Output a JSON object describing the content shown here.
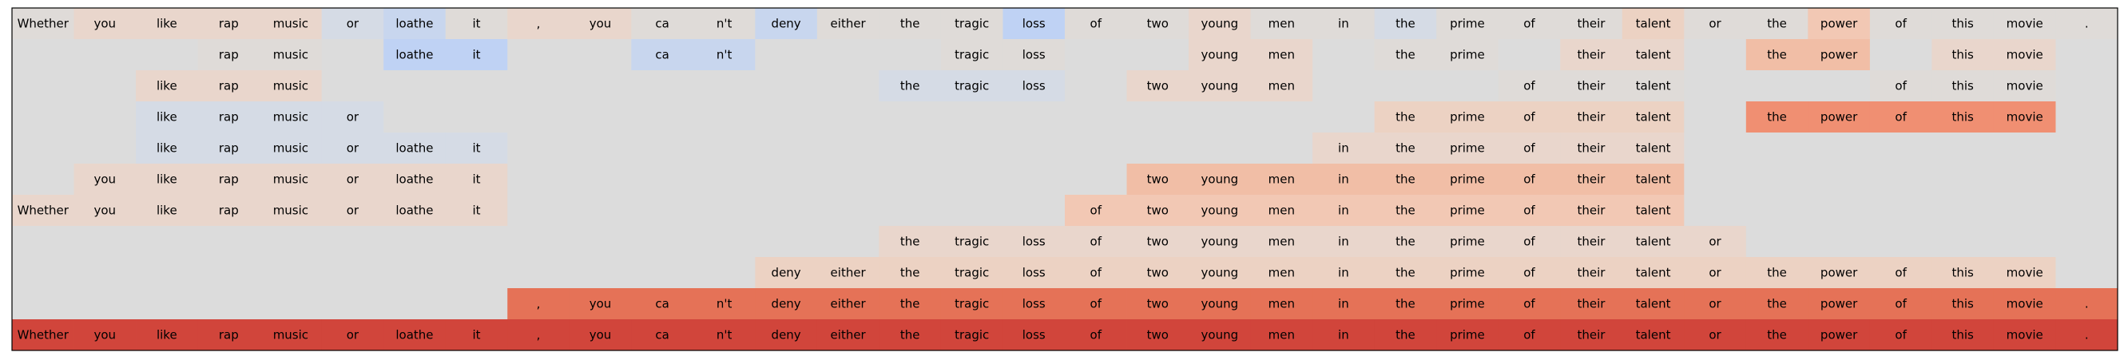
{
  "chart_data": {
    "type": "heatmap",
    "title": "",
    "xlabel": "",
    "ylabel": "",
    "tokens": [
      "Whether",
      "you",
      "like",
      "rap",
      "music",
      "or",
      "loathe",
      "it",
      ",",
      "you",
      "ca",
      "n't",
      "deny",
      "either",
      "the",
      "tragic",
      "loss",
      "of",
      "two",
      "young",
      "men",
      "in",
      "the",
      "prime",
      "of",
      "their",
      "talent",
      "or",
      "the",
      "power",
      "of",
      "this",
      "movie",
      "."
    ],
    "colors": {
      "background": "#dcdcdc",
      "frame": "#000000",
      "neg_1": "#dfdbd8",
      "neg_2": "#d5dbe5",
      "neg_3": "#c8d6ee",
      "neg_4": "#bfd2f4",
      "pos_1": "#e9d6cc",
      "pos_2": "#ecd2c3",
      "pos_3": "#f2c8b4",
      "pos_4": "#f1bea6",
      "pos_5": "#f08f72",
      "pos_6": "#e57257",
      "pos_7": "#d1453b"
    },
    "rows": [
      {
        "mask": [
          1,
          1,
          1,
          1,
          1,
          1,
          1,
          1,
          1,
          1,
          1,
          1,
          1,
          1,
          1,
          1,
          1,
          1,
          1,
          1,
          1,
          1,
          1,
          1,
          1,
          1,
          1,
          1,
          1,
          1,
          1,
          1,
          1,
          1
        ],
        "shade": [
          "neg_1",
          "pos_1",
          "pos_1",
          "pos_1",
          "pos_1",
          "neg_2",
          "neg_3",
          "neg_1",
          "pos_1",
          "pos_1",
          "neg_1",
          "neg_1",
          "neg_3",
          "neg_1",
          "neg_1",
          "neg_1",
          "neg_4",
          "neg_1",
          "neg_1",
          "pos_1",
          "neg_1",
          "neg_1",
          "neg_2",
          "neg_1",
          "neg_1",
          "neg_1",
          "pos_2",
          "neg_1",
          "neg_1",
          "pos_3",
          "neg_1",
          "neg_1",
          "neg_1",
          "neg_1"
        ]
      },
      {
        "mask": [
          0,
          0,
          0,
          1,
          1,
          0,
          1,
          1,
          0,
          0,
          1,
          1,
          0,
          0,
          0,
          1,
          1,
          0,
          0,
          1,
          1,
          0,
          1,
          1,
          0,
          1,
          1,
          0,
          1,
          1,
          0,
          1,
          1,
          0
        ],
        "shade": [
          "bg",
          "bg",
          "bg",
          "neg_1",
          "neg_1",
          "bg",
          "neg_4",
          "neg_4",
          "bg",
          "bg",
          "neg_3",
          "neg_3",
          "bg",
          "bg",
          "bg",
          "neg_1",
          "neg_1",
          "bg",
          "bg",
          "pos_1",
          "pos_1",
          "bg",
          "neg_1",
          "neg_1",
          "bg",
          "pos_1",
          "pos_1",
          "bg",
          "pos_4",
          "pos_4",
          "bg",
          "pos_1",
          "pos_1",
          "bg"
        ]
      },
      {
        "mask": [
          0,
          0,
          1,
          1,
          1,
          0,
          0,
          0,
          0,
          0,
          0,
          0,
          0,
          0,
          1,
          1,
          1,
          0,
          1,
          1,
          1,
          0,
          0,
          0,
          1,
          1,
          1,
          0,
          0,
          0,
          1,
          1,
          1,
          0
        ],
        "shade": [
          "bg",
          "bg",
          "pos_1",
          "pos_1",
          "pos_1",
          "bg",
          "bg",
          "bg",
          "bg",
          "bg",
          "bg",
          "bg",
          "bg",
          "bg",
          "neg_2",
          "neg_2",
          "neg_2",
          "bg",
          "pos_1",
          "pos_1",
          "pos_1",
          "bg",
          "bg",
          "bg",
          "neg_1",
          "neg_1",
          "neg_1",
          "bg",
          "bg",
          "bg",
          "neg_1",
          "neg_1",
          "neg_1",
          "bg"
        ]
      },
      {
        "mask": [
          0,
          0,
          1,
          1,
          1,
          1,
          0,
          0,
          0,
          0,
          0,
          0,
          0,
          0,
          0,
          0,
          0,
          0,
          0,
          0,
          0,
          0,
          1,
          1,
          1,
          1,
          1,
          0,
          1,
          1,
          1,
          1,
          1,
          0
        ],
        "shade": [
          "bg",
          "bg",
          "neg_2",
          "neg_2",
          "neg_2",
          "neg_2",
          "bg",
          "bg",
          "bg",
          "bg",
          "bg",
          "bg",
          "bg",
          "bg",
          "bg",
          "bg",
          "bg",
          "bg",
          "bg",
          "bg",
          "bg",
          "bg",
          "pos_2",
          "pos_2",
          "pos_2",
          "pos_2",
          "pos_2",
          "bg",
          "pos_5",
          "pos_5",
          "pos_5",
          "pos_5",
          "pos_5",
          "bg"
        ]
      },
      {
        "mask": [
          0,
          0,
          1,
          1,
          1,
          1,
          1,
          1,
          0,
          0,
          0,
          0,
          0,
          0,
          0,
          0,
          0,
          0,
          0,
          0,
          0,
          1,
          1,
          1,
          1,
          1,
          1,
          0,
          0,
          0,
          0,
          0,
          0,
          0
        ],
        "shade": [
          "bg",
          "bg",
          "neg_2",
          "neg_2",
          "neg_2",
          "neg_2",
          "neg_2",
          "neg_2",
          "bg",
          "bg",
          "bg",
          "bg",
          "bg",
          "bg",
          "bg",
          "bg",
          "bg",
          "bg",
          "bg",
          "bg",
          "bg",
          "pos_1",
          "pos_1",
          "pos_1",
          "pos_1",
          "pos_1",
          "pos_1",
          "bg",
          "bg",
          "bg",
          "bg",
          "bg",
          "bg",
          "bg"
        ]
      },
      {
        "mask": [
          0,
          1,
          1,
          1,
          1,
          1,
          1,
          1,
          0,
          0,
          0,
          0,
          0,
          0,
          0,
          0,
          0,
          0,
          1,
          1,
          1,
          1,
          1,
          1,
          1,
          1,
          1,
          0,
          0,
          0,
          0,
          0,
          0,
          0
        ],
        "shade": [
          "bg",
          "pos_1",
          "pos_1",
          "pos_1",
          "pos_1",
          "pos_1",
          "pos_1",
          "pos_1",
          "bg",
          "bg",
          "bg",
          "bg",
          "bg",
          "bg",
          "bg",
          "bg",
          "bg",
          "bg",
          "pos_4",
          "pos_4",
          "pos_4",
          "pos_4",
          "pos_4",
          "pos_4",
          "pos_4",
          "pos_4",
          "pos_4",
          "bg",
          "bg",
          "bg",
          "bg",
          "bg",
          "bg",
          "bg"
        ]
      },
      {
        "mask": [
          1,
          1,
          1,
          1,
          1,
          1,
          1,
          1,
          0,
          0,
          0,
          0,
          0,
          0,
          0,
          0,
          0,
          1,
          1,
          1,
          1,
          1,
          1,
          1,
          1,
          1,
          1,
          0,
          0,
          0,
          0,
          0,
          0,
          0
        ],
        "shade": [
          "pos_1",
          "pos_1",
          "pos_1",
          "pos_1",
          "pos_1",
          "pos_1",
          "pos_1",
          "pos_1",
          "bg",
          "bg",
          "bg",
          "bg",
          "bg",
          "bg",
          "bg",
          "bg",
          "bg",
          "pos_3",
          "pos_3",
          "pos_3",
          "pos_3",
          "pos_3",
          "pos_3",
          "pos_3",
          "pos_3",
          "pos_3",
          "pos_3",
          "bg",
          "bg",
          "bg",
          "bg",
          "bg",
          "bg",
          "bg"
        ]
      },
      {
        "mask": [
          0,
          0,
          0,
          0,
          0,
          0,
          0,
          0,
          0,
          0,
          0,
          0,
          0,
          0,
          1,
          1,
          1,
          1,
          1,
          1,
          1,
          1,
          1,
          1,
          1,
          1,
          1,
          1,
          0,
          0,
          0,
          0,
          0,
          0
        ],
        "shade": [
          "bg",
          "bg",
          "bg",
          "bg",
          "bg",
          "bg",
          "bg",
          "bg",
          "bg",
          "bg",
          "bg",
          "bg",
          "bg",
          "bg",
          "pos_1",
          "pos_1",
          "pos_1",
          "pos_1",
          "pos_1",
          "pos_1",
          "pos_1",
          "pos_1",
          "pos_1",
          "pos_1",
          "pos_1",
          "pos_1",
          "pos_1",
          "pos_1",
          "bg",
          "bg",
          "bg",
          "bg",
          "bg",
          "bg"
        ]
      },
      {
        "mask": [
          0,
          0,
          0,
          0,
          0,
          0,
          0,
          0,
          0,
          0,
          0,
          0,
          1,
          1,
          1,
          1,
          1,
          1,
          1,
          1,
          1,
          1,
          1,
          1,
          1,
          1,
          1,
          1,
          1,
          1,
          1,
          1,
          1,
          0
        ],
        "shade": [
          "bg",
          "bg",
          "bg",
          "bg",
          "bg",
          "bg",
          "bg",
          "bg",
          "bg",
          "bg",
          "bg",
          "bg",
          "pos_2",
          "pos_2",
          "pos_2",
          "pos_2",
          "pos_2",
          "pos_2",
          "pos_2",
          "pos_2",
          "pos_2",
          "pos_2",
          "pos_2",
          "pos_2",
          "pos_2",
          "pos_2",
          "pos_2",
          "pos_2",
          "pos_2",
          "pos_2",
          "pos_2",
          "pos_2",
          "pos_2",
          "bg"
        ]
      },
      {
        "mask": [
          0,
          0,
          0,
          0,
          0,
          0,
          0,
          0,
          1,
          1,
          1,
          1,
          1,
          1,
          1,
          1,
          1,
          1,
          1,
          1,
          1,
          1,
          1,
          1,
          1,
          1,
          1,
          1,
          1,
          1,
          1,
          1,
          1,
          1
        ],
        "shade": [
          "bg",
          "bg",
          "bg",
          "bg",
          "bg",
          "bg",
          "bg",
          "bg",
          "pos_6",
          "pos_6",
          "pos_6",
          "pos_6",
          "pos_6",
          "pos_6",
          "pos_6",
          "pos_6",
          "pos_6",
          "pos_6",
          "pos_6",
          "pos_6",
          "pos_6",
          "pos_6",
          "pos_6",
          "pos_6",
          "pos_6",
          "pos_6",
          "pos_6",
          "pos_6",
          "pos_6",
          "pos_6",
          "pos_6",
          "pos_6",
          "pos_6",
          "pos_6"
        ]
      },
      {
        "mask": [
          1,
          1,
          1,
          1,
          1,
          1,
          1,
          1,
          1,
          1,
          1,
          1,
          1,
          1,
          1,
          1,
          1,
          1,
          1,
          1,
          1,
          1,
          1,
          1,
          1,
          1,
          1,
          1,
          1,
          1,
          1,
          1,
          1,
          1
        ],
        "shade": [
          "pos_7",
          "pos_7",
          "pos_7",
          "pos_7",
          "pos_7",
          "pos_7",
          "pos_7",
          "pos_7",
          "pos_7",
          "pos_7",
          "pos_7",
          "pos_7",
          "pos_7",
          "pos_7",
          "pos_7",
          "pos_7",
          "pos_7",
          "pos_7",
          "pos_7",
          "pos_7",
          "pos_7",
          "pos_7",
          "pos_7",
          "pos_7",
          "pos_7",
          "pos_7",
          "pos_7",
          "pos_7",
          "pos_7",
          "pos_7",
          "pos_7",
          "pos_7",
          "pos_7",
          "pos_7"
        ]
      }
    ]
  }
}
